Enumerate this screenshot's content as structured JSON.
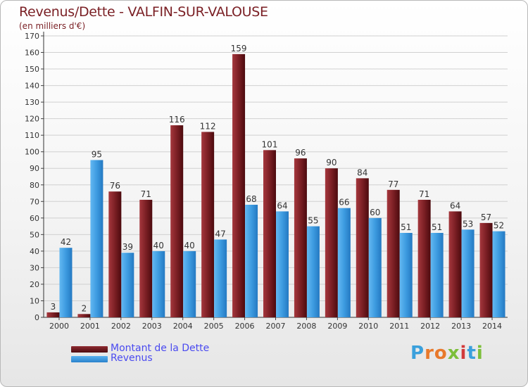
{
  "chart_data": {
    "type": "bar",
    "title": "Revenus/Dette - VALFIN-SUR-VALOUSE",
    "subtitle": "(en milliers d'€)",
    "categories": [
      "2000",
      "2001",
      "2002",
      "2003",
      "2004",
      "2005",
      "2006",
      "2007",
      "2008",
      "2009",
      "2010",
      "2011",
      "2012",
      "2013",
      "2014"
    ],
    "series": [
      {
        "name": "Montant de la Dette",
        "color": "#7b1f24",
        "values": [
          3,
          2,
          76,
          71,
          116,
          112,
          159,
          101,
          96,
          90,
          84,
          77,
          71,
          64,
          57
        ]
      },
      {
        "name": "Revenus",
        "color": "#3d9be0",
        "values": [
          42,
          95,
          39,
          40,
          40,
          47,
          68,
          64,
          55,
          66,
          60,
          51,
          51,
          53,
          52
        ]
      }
    ],
    "yticks": [
      0,
      10,
      20,
      30,
      40,
      50,
      60,
      70,
      80,
      90,
      100,
      110,
      120,
      130,
      140,
      150,
      160,
      170
    ],
    "ylim": [
      0,
      170
    ],
    "grid": true,
    "legend_position": "bottom-left"
  },
  "logo": {
    "letters": [
      {
        "ch": "P",
        "color": "#3aa0dc"
      },
      {
        "ch": "r",
        "color": "#e8792b"
      },
      {
        "ch": "o",
        "color": "#e8792b"
      },
      {
        "ch": "x",
        "color": "#7cbf3a"
      },
      {
        "ch": "i",
        "color": "#d23a3a"
      },
      {
        "ch": "t",
        "color": "#3aa0dc"
      },
      {
        "ch": "i",
        "color": "#7cbf3a"
      }
    ]
  }
}
